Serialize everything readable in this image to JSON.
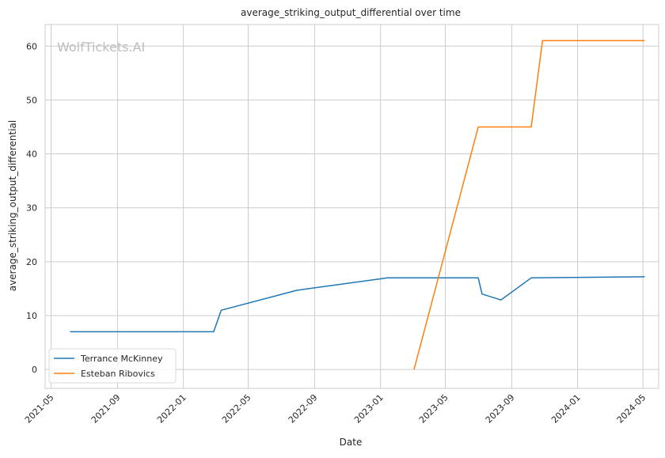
{
  "chart_data": {
    "type": "line",
    "title": "average_striking_output_differential over time",
    "xlabel": "Date",
    "ylabel": "average_striking_output_differential",
    "watermark": "WolfTickets.AI",
    "x_ticks": [
      "2021-05",
      "2021-09",
      "2022-01",
      "2022-05",
      "2022-09",
      "2023-01",
      "2023-05",
      "2023-09",
      "2024-01",
      "2024-05"
    ],
    "y_ticks": [
      0,
      10,
      20,
      30,
      40,
      50,
      60
    ],
    "xlim": [
      "2021-04-20",
      "2024-05-30"
    ],
    "ylim": [
      -3.5,
      64
    ],
    "grid": true,
    "legend_position": "lower-left",
    "series": [
      {
        "name": "Terrance McKinney",
        "color": "#1f77b4",
        "points": [
          {
            "x": "2021-06-05",
            "y": 7.0
          },
          {
            "x": "2022-02-26",
            "y": 7.0
          },
          {
            "x": "2022-03-12",
            "y": 11.0
          },
          {
            "x": "2022-07-30",
            "y": 14.7
          },
          {
            "x": "2023-01-14",
            "y": 17.0
          },
          {
            "x": "2023-07-01",
            "y": 17.0
          },
          {
            "x": "2023-07-08",
            "y": 14.0
          },
          {
            "x": "2023-08-12",
            "y": 12.9
          },
          {
            "x": "2023-10-07",
            "y": 17.0
          },
          {
            "x": "2024-05-04",
            "y": 17.2
          }
        ]
      },
      {
        "name": "Esteban Ribovics",
        "color": "#ff7f0e",
        "points": [
          {
            "x": "2023-03-04",
            "y": 0.0
          },
          {
            "x": "2023-07-01",
            "y": 45.0
          },
          {
            "x": "2023-10-07",
            "y": 45.0
          },
          {
            "x": "2023-10-28",
            "y": 61.0
          },
          {
            "x": "2024-05-04",
            "y": 61.0
          }
        ]
      }
    ]
  }
}
